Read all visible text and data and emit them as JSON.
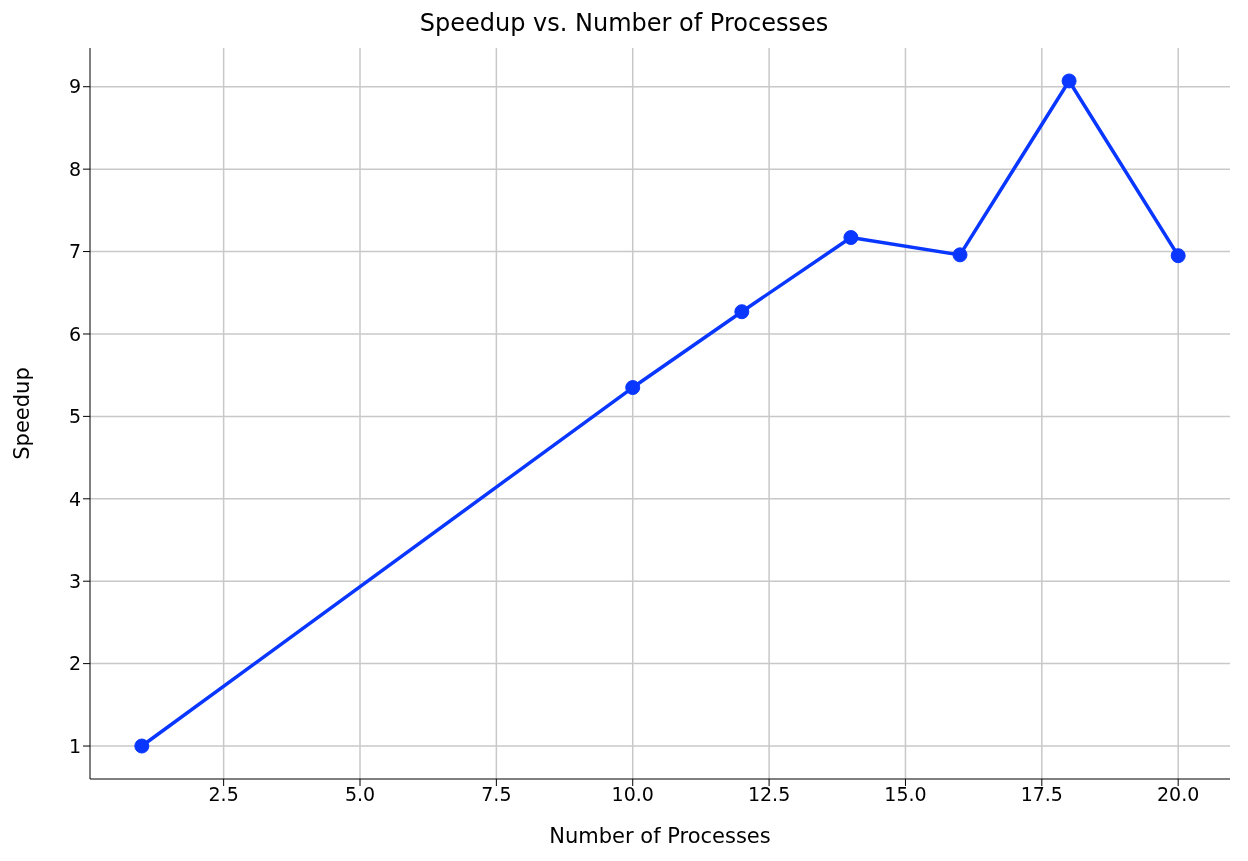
{
  "chart_data": {
    "type": "line",
    "title": "Speedup vs. Number of Processes",
    "xlabel": "Number of Processes",
    "ylabel": "Speedup",
    "x": [
      1,
      10,
      12,
      14,
      16,
      18,
      20
    ],
    "series": [
      {
        "color": "#0a37ff",
        "values": [
          1,
          5.35,
          6.27,
          7.17,
          6.96,
          9.07,
          6.95
        ]
      }
    ],
    "xlim": [
      0.05,
      20.95
    ],
    "ylim": [
      0.6,
      9.47
    ],
    "xticks": [
      {
        "value": 2.5,
        "label": "2.5"
      },
      {
        "value": 5,
        "label": "5.0"
      },
      {
        "value": 7.5,
        "label": "7.5"
      },
      {
        "value": 10,
        "label": "10.0"
      },
      {
        "value": 12.5,
        "label": "12.5"
      },
      {
        "value": 15,
        "label": "15.0"
      },
      {
        "value": 17.5,
        "label": "17.5"
      },
      {
        "value": 20,
        "label": "20.0"
      }
    ],
    "yticks": [
      1,
      2,
      3,
      4,
      5,
      6,
      7,
      8,
      9
    ],
    "grid": true,
    "marker": "circle",
    "line_style": "solid"
  }
}
